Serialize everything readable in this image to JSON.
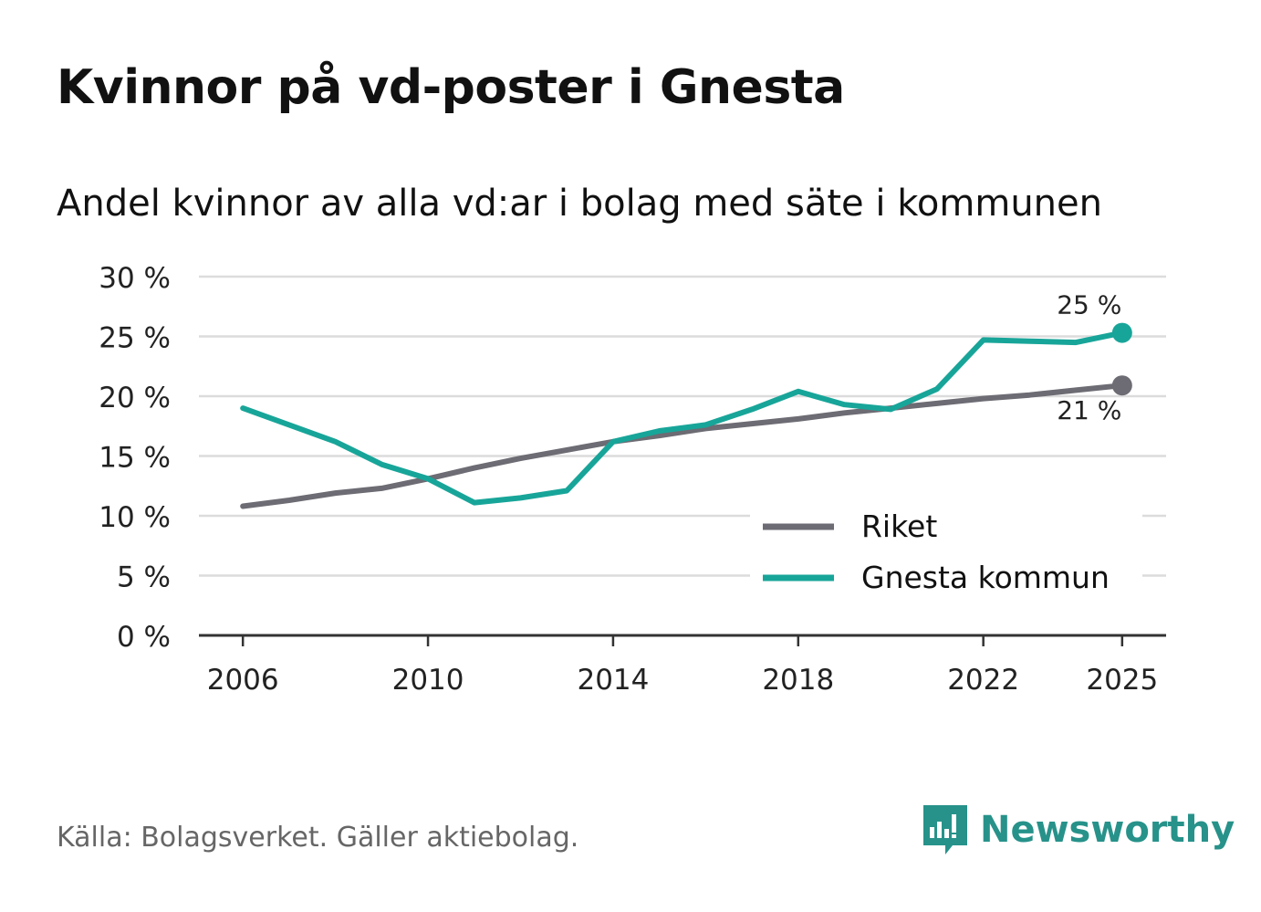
{
  "title": "Kvinnor på vd-poster i Gnesta",
  "subtitle": "Andel kvinnor av alla vd:ar i bolag med säte i kommunen",
  "source": "Källa: Bolagsverket. Gäller aktiebolag.",
  "brand": {
    "name": "Newsworthy",
    "icon": "newsworthy-logo-icon",
    "color": "#27928a"
  },
  "chart_data": {
    "type": "line",
    "x": [
      2006,
      2007,
      2008,
      2009,
      2010,
      2011,
      2012,
      2013,
      2014,
      2015,
      2016,
      2017,
      2018,
      2019,
      2020,
      2021,
      2022,
      2023,
      2024,
      2025
    ],
    "series": [
      {
        "name": "Riket",
        "color": "#6d6b73",
        "values": [
          10.8,
          11.3,
          11.9,
          12.3,
          13.1,
          14.0,
          14.8,
          15.5,
          16.2,
          16.7,
          17.3,
          17.7,
          18.1,
          18.6,
          19.0,
          19.4,
          19.8,
          20.1,
          20.5,
          20.9
        ],
        "end_label": "21 %"
      },
      {
        "name": "Gnesta kommun",
        "color": "#18a599",
        "values": [
          19.0,
          17.6,
          16.2,
          14.3,
          13.1,
          11.1,
          11.5,
          12.1,
          16.2,
          17.1,
          17.6,
          18.9,
          20.4,
          19.3,
          18.9,
          20.6,
          24.7,
          24.6,
          24.5,
          25.3
        ],
        "end_label": "25 %"
      }
    ],
    "x_ticks": [
      "2006",
      "2010",
      "2014",
      "2018",
      "2022",
      "2025"
    ],
    "y_ticks": [
      "0 %",
      "5 %",
      "10 %",
      "15 %",
      "20 %",
      "25 %",
      "30 %"
    ],
    "ylim": [
      0,
      30
    ],
    "legend_position": "bottom-right",
    "grid": true
  }
}
